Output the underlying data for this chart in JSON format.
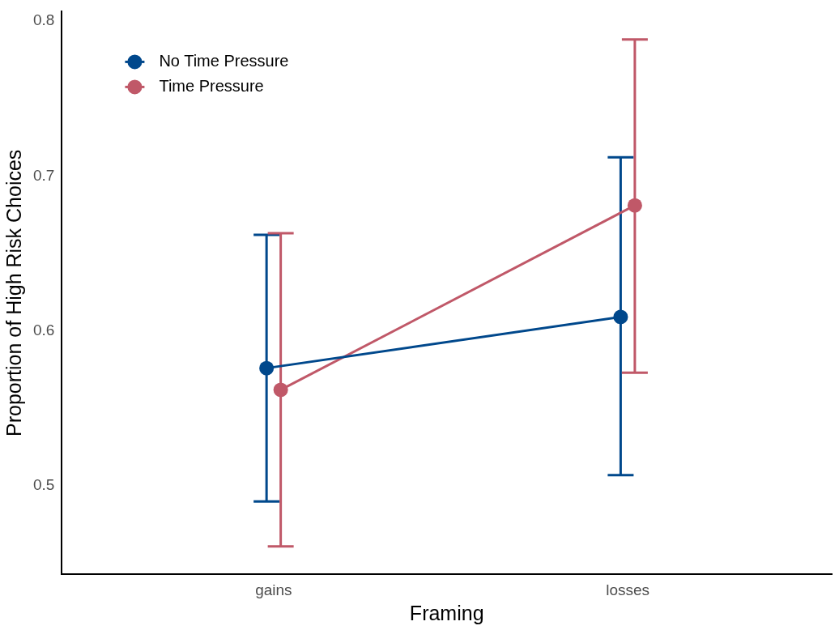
{
  "chart_data": {
    "type": "line",
    "xlabel": "Framing",
    "ylabel": "Proportion of High Risk Choices",
    "categories": [
      "gains",
      "losses"
    ],
    "series": [
      {
        "name": "No Time Pressure",
        "color": "#00488c",
        "values": [
          0.576,
          0.609
        ],
        "errors": [
          [
            0.49,
            0.662
          ],
          [
            0.507,
            0.712
          ]
        ]
      },
      {
        "name": "Time Pressure",
        "color": "#c05868",
        "values": [
          0.562,
          0.681
        ],
        "errors": [
          [
            0.461,
            0.663
          ],
          [
            0.573,
            0.788
          ]
        ]
      }
    ],
    "ylim": [
      0.443,
      0.806
    ],
    "yticks": [
      0.5,
      0.6,
      0.7,
      0.8
    ],
    "grid": false,
    "legend": "top left",
    "marker": "circle",
    "line_style": "solid"
  }
}
